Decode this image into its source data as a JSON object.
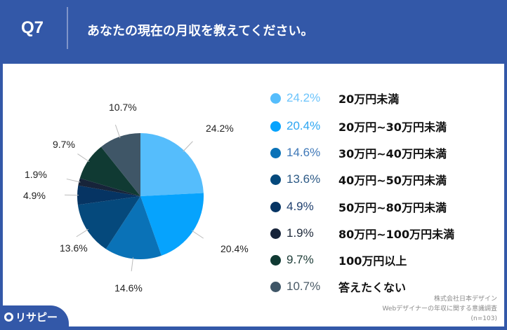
{
  "header": {
    "question": "Q7",
    "title": "あなたの現在の月収を教えてください。"
  },
  "logo": "リサピー",
  "source": [
    "株式会社日本デザイン",
    "Webデザイナーの年収に関する意識調査",
    "(n=103)"
  ],
  "chart_data": {
    "type": "pie",
    "start": "12 o'clock, clockwise",
    "categories": [
      "20万円未満",
      "20万円~30万円未満",
      "30万円~40万円未満",
      "40万円~50万円未満",
      "50万円~80万円未満",
      "80万円~100万円未満",
      "100万円以上",
      "答えたくない"
    ],
    "values": [
      24.2,
      20.4,
      14.6,
      13.6,
      4.9,
      1.9,
      9.7,
      10.7
    ],
    "labels": [
      "24.2%",
      "20.4%",
      "14.6%",
      "13.6%",
      "4.9%",
      "1.9%",
      "9.7%",
      "10.7%"
    ],
    "colors": [
      "#55bdfc",
      "#06a3fd",
      "#0a72b7",
      "#05497c",
      "#063463",
      "#17243a",
      "#103a33",
      "#3f5667"
    ],
    "legend_text_colors": [
      "#6cc4fb",
      "#2ea6f2",
      "#3f78b8",
      "#2d5a86",
      "#1f3f6e",
      "#1f2a3b",
      "#1d3c37",
      "#4a5a66"
    ],
    "legend": "right"
  }
}
